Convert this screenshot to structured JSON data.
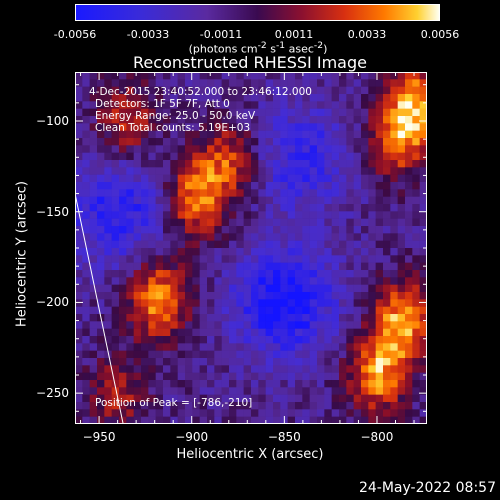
{
  "colorbar": {
    "ticks": [
      "-0.0056",
      "-0.0033",
      "-0.0011",
      "0.0011",
      "0.0033",
      "0.0056"
    ],
    "unit_prefix": "(photons cm",
    "unit_sup1": "-2",
    "unit_mid": " s",
    "unit_sup2": "-1",
    "unit_mid2": " asec",
    "unit_sup3": "-2",
    "unit_suffix": ")"
  },
  "chart_data": {
    "type": "heatmap",
    "title": "Reconstructed RHESSI Image",
    "xlabel": "Heliocentric X (arcsec)",
    "ylabel": "Heliocentric Y (arcsec)",
    "xlim": [
      -963,
      -773
    ],
    "ylim": [
      -267,
      -73
    ],
    "xticks": [
      -950,
      -900,
      -850,
      -800
    ],
    "yticks": [
      -100,
      -150,
      -200,
      -250
    ],
    "zrange": [
      -0.0056,
      0.0056
    ],
    "annotations": {
      "time_range": "4-Dec-2015 23:40:52.000 to 23:46:12.000",
      "detectors": "Detectors: 1F 5F 7F, Att 0",
      "energy": "Energy Range: 25.0 - 50.0 keV",
      "clean": "Clean    Total counts: 5.19E+03",
      "peak": "Position of Peak = [-786,-210]"
    },
    "sources": [
      {
        "x": -880,
        "y": -122,
        "amp": 0.004
      },
      {
        "x": -898,
        "y": -143,
        "amp": 0.0052
      },
      {
        "x": -918,
        "y": -198,
        "amp": 0.0055
      },
      {
        "x": -790,
        "y": -110,
        "amp": 0.0045
      },
      {
        "x": -778,
        "y": -90,
        "amp": 0.005
      },
      {
        "x": -786,
        "y": -210,
        "amp": 0.0056
      },
      {
        "x": -800,
        "y": -240,
        "amp": 0.0052
      },
      {
        "x": -935,
        "y": -100,
        "amp": 0.0035
      },
      {
        "x": -940,
        "y": -250,
        "amp": 0.003
      }
    ],
    "negative_regions": [
      {
        "x": -850,
        "y": -200,
        "amp": -0.0045
      },
      {
        "x": -940,
        "y": -150,
        "amp": -0.0035
      },
      {
        "x": -840,
        "y": -120,
        "amp": -0.003
      }
    ],
    "limb_line": [
      [
        -963,
        -140
      ],
      [
        -937,
        -267
      ]
    ]
  },
  "footer": {
    "date": "24-May-2022 08:57"
  }
}
